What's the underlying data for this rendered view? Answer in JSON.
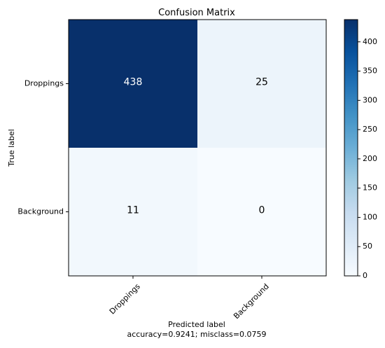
{
  "chart_data": {
    "type": "heatmap",
    "title": "Confusion Matrix",
    "xlabel": "Predicted label",
    "xlabel_sub": "accuracy=0.9241; misclass=0.0759",
    "ylabel": "True label",
    "row_labels": [
      "Droppings",
      "Background"
    ],
    "col_labels": [
      "Droppings",
      "Background"
    ],
    "values": [
      [
        438,
        25
      ],
      [
        11,
        0
      ]
    ],
    "colormap": "Blues",
    "colorbar": {
      "min": 0,
      "max": 438,
      "ticks": [
        0,
        50,
        100,
        150,
        200,
        250,
        300,
        350,
        400
      ]
    },
    "text_colors": {
      "light": "#ffffff",
      "dark": "#000000"
    }
  }
}
